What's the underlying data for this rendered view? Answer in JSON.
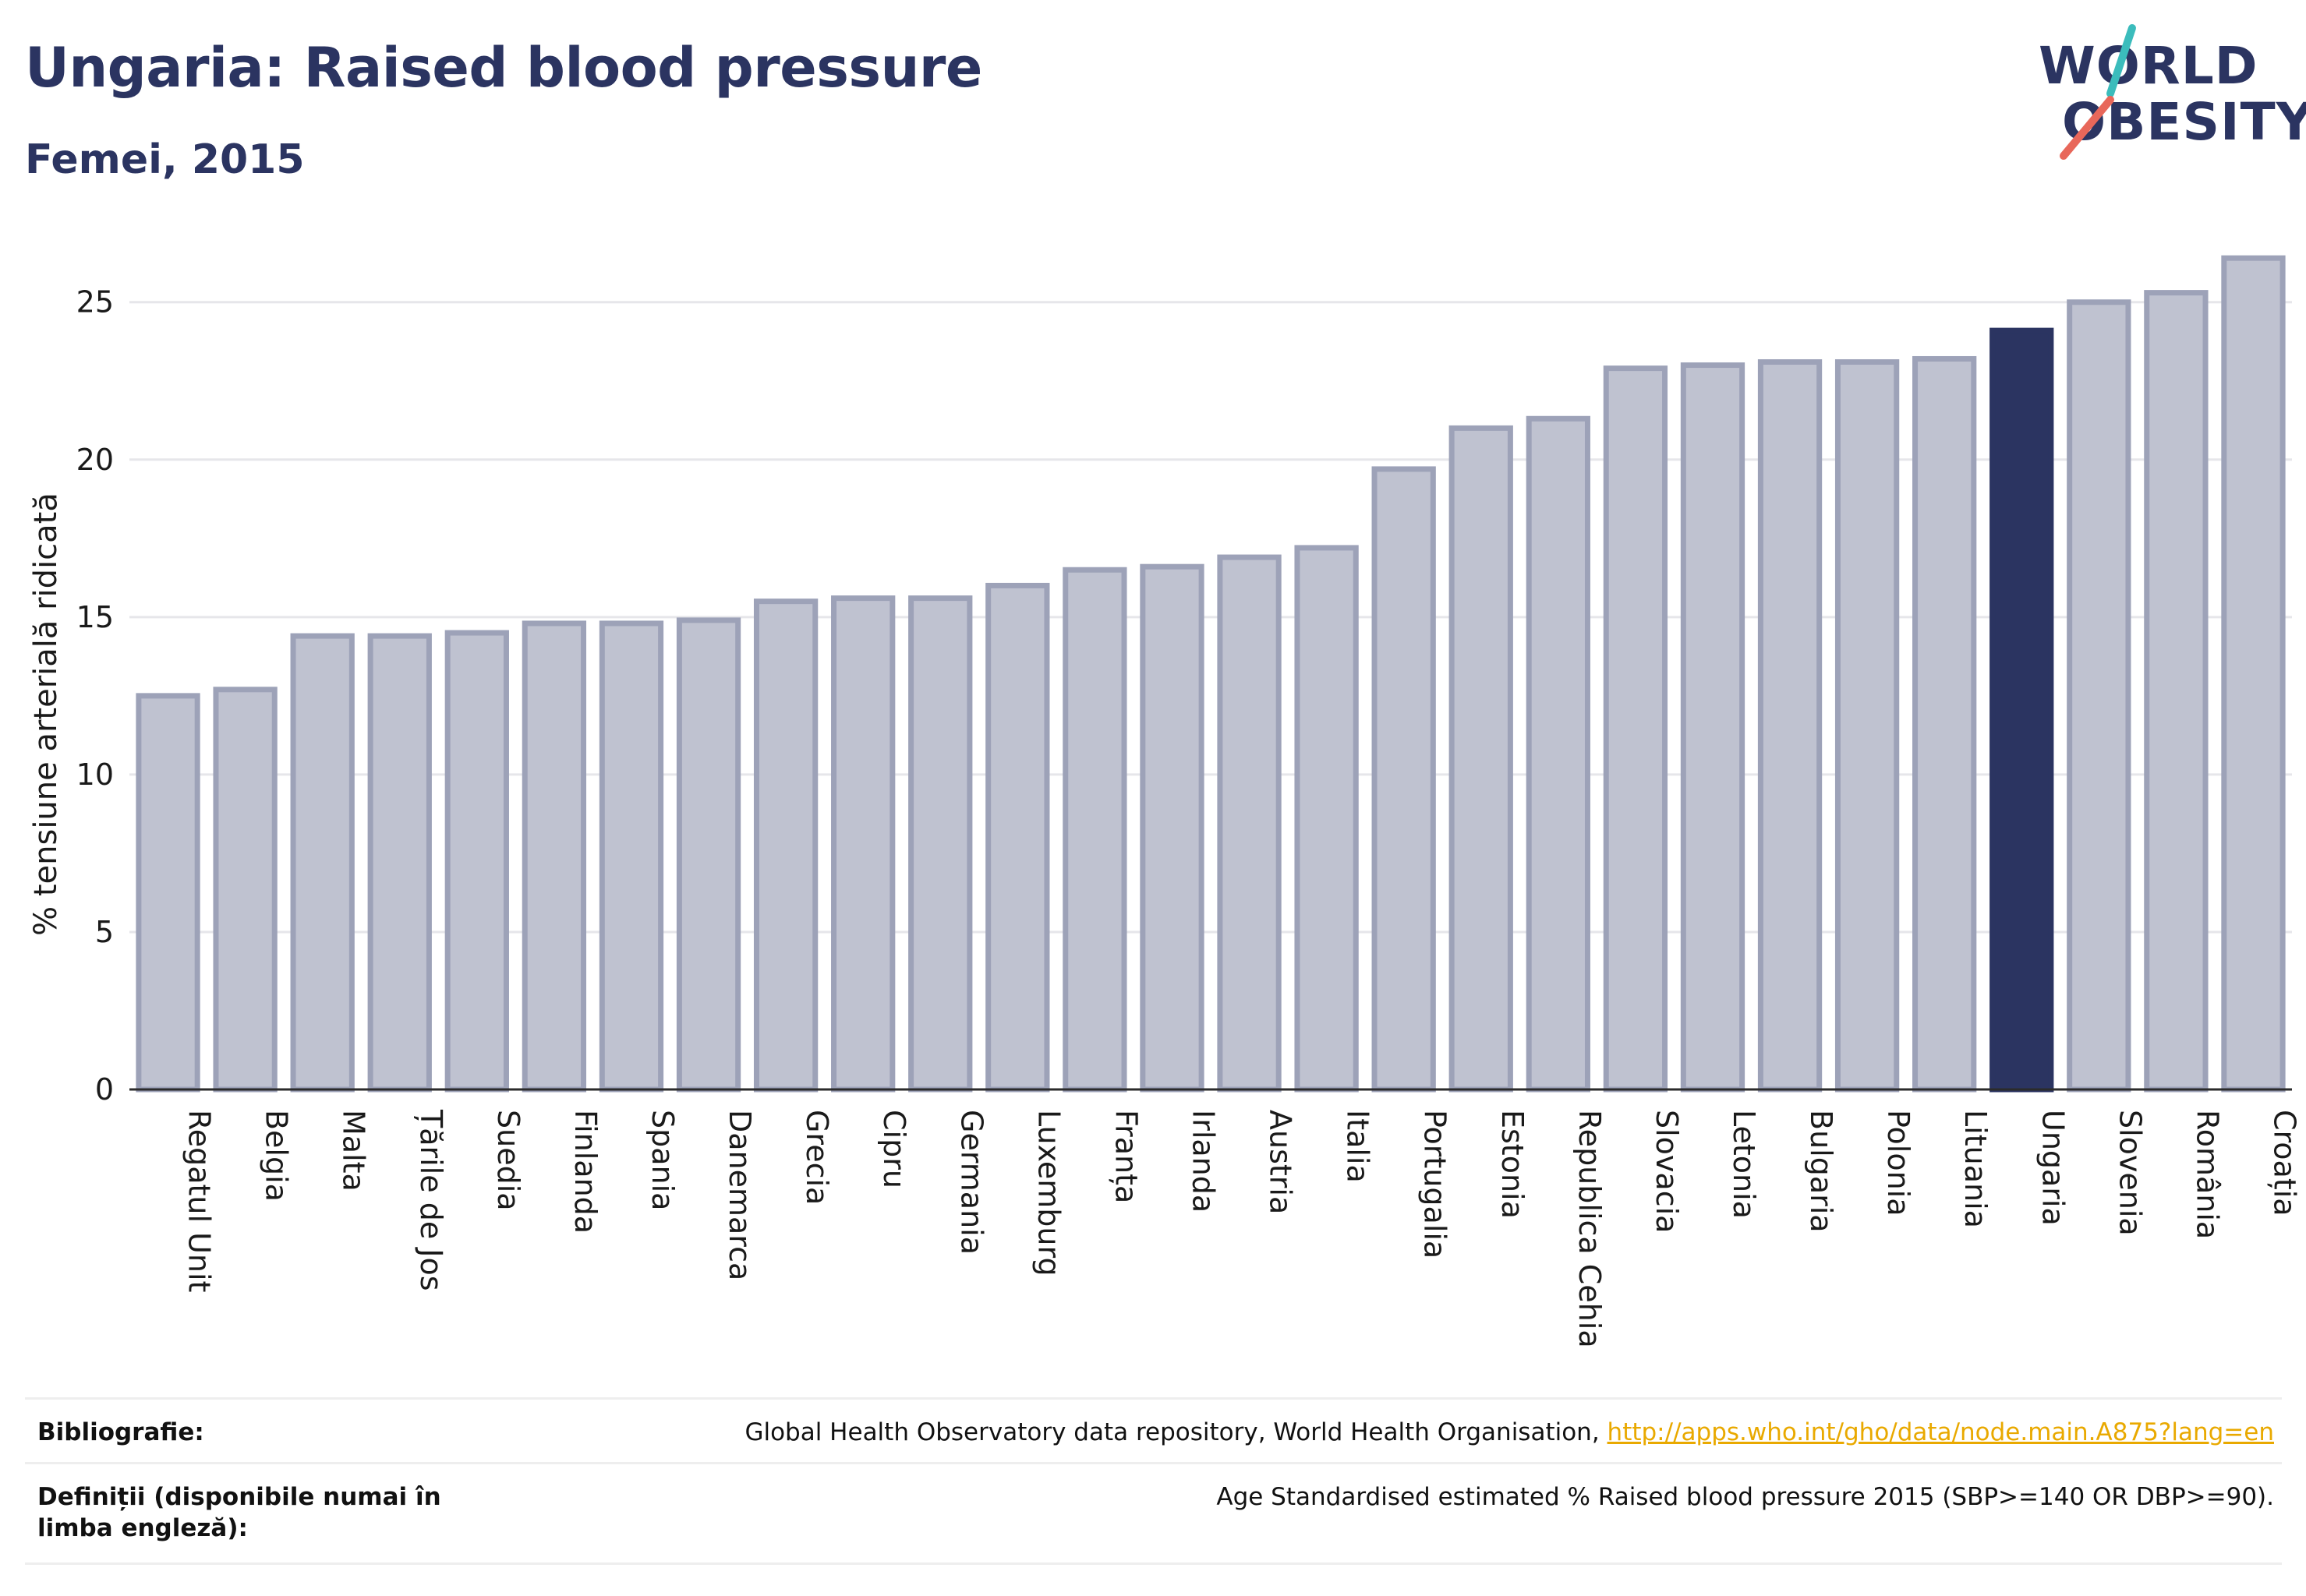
{
  "header": {
    "title": "Ungaria: Raised blood pressure",
    "subtitle": "Femei, 2015"
  },
  "logo": {
    "line1": "WORLD",
    "line2": "OBESITY"
  },
  "colors": {
    "primary": "#2b3461",
    "bar_fill": "#bfc2d0",
    "bar_stroke": "#9da2b8",
    "highlight": "#2b3461",
    "link": "#e9a900",
    "logo_teal": "#3bbcbc",
    "logo_red": "#e8675a"
  },
  "chart_data": {
    "type": "bar",
    "ylabel": "% tensiune arterială ridicată",
    "ylim": [
      0,
      26.8
    ],
    "yticks": [
      0,
      5,
      10,
      15,
      20,
      25
    ],
    "grid": true,
    "highlight": "Ungaria",
    "categories": [
      "Regatul Unit",
      "Belgia",
      "Malta",
      "Țările de Jos",
      "Suedia",
      "Finlanda",
      "Spania",
      "Danemarca",
      "Grecia",
      "Cipru",
      "Germania",
      "Luxemburg",
      "Franța",
      "Irlanda",
      "Austria",
      "Italia",
      "Portugalia",
      "Estonia",
      "Republica Cehia",
      "Slovacia",
      "Letonia",
      "Bulgaria",
      "Polonia",
      "Lituania",
      "Ungaria",
      "Slovenia",
      "România",
      "Croația"
    ],
    "values": [
      12.5,
      12.7,
      14.4,
      14.4,
      14.5,
      14.8,
      14.8,
      14.9,
      15.5,
      15.6,
      15.6,
      16.0,
      16.5,
      16.6,
      16.9,
      17.2,
      19.7,
      21.0,
      21.3,
      22.9,
      23.0,
      23.1,
      23.1,
      23.2,
      24.1,
      25.0,
      25.3,
      26.4
    ]
  },
  "footer": {
    "bibliography_label": "Bibliografie:",
    "bibliography_text": "Global Health Observatory data repository, World Health Organisation, ",
    "bibliography_link": "http://apps.who.int/gho/data/node.main.A875?lang=en",
    "definitions_label": "Definiții (disponibile numai în limba engleză):",
    "definitions_text": "Age Standardised estimated % Raised blood pressure 2015 (SBP>=140 OR DBP>=90)."
  }
}
